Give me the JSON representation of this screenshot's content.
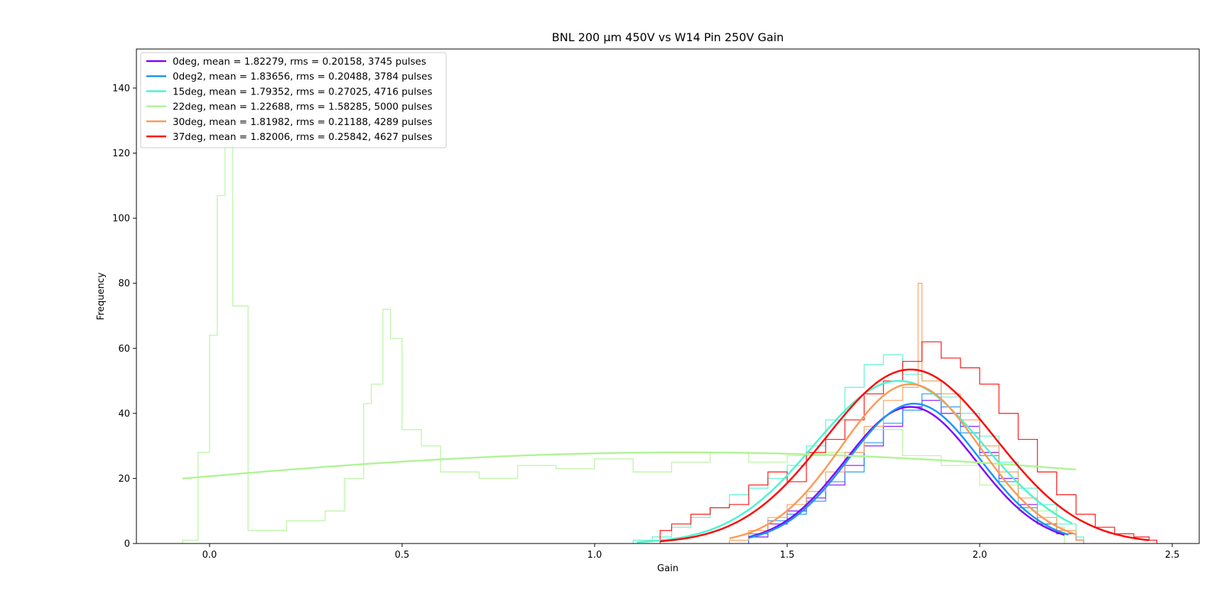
{
  "chart_data": {
    "type": "line",
    "title": "BNL 200 µm 450V vs W14 Pin 250V Gain",
    "xlabel": "Gain",
    "ylabel": "Frequency",
    "xlim": [
      -0.19,
      2.57
    ],
    "ylim": [
      0,
      152
    ],
    "xticks": [
      0.0,
      0.5,
      1.0,
      1.5,
      2.0,
      2.5
    ],
    "xtick_labels": [
      "0.0",
      "0.5",
      "1.0",
      "1.5",
      "2.0",
      "2.5"
    ],
    "yticks": [
      0,
      20,
      40,
      60,
      80,
      100,
      120,
      140
    ],
    "ytick_labels": [
      "0",
      "20",
      "40",
      "60",
      "80",
      "100",
      "120",
      "140"
    ],
    "grid": false,
    "legend_position": "top-left",
    "series": [
      {
        "name": "0deg, mean = 1.82279, rms = 0.20158, 3745 pulses",
        "color": "#8000ff",
        "fit": {
          "amplitude": 42,
          "mean": 1.82,
          "sigma": 0.17,
          "xmin": 1.4,
          "xmax": 2.22
        },
        "hist_x": [
          1.4,
          1.45,
          1.5,
          1.55,
          1.6,
          1.65,
          1.7,
          1.75,
          1.8,
          1.85,
          1.9,
          1.95,
          2.0,
          2.05,
          2.1,
          2.15,
          2.2,
          2.25
        ],
        "hist_y": [
          2,
          6,
          10,
          14,
          18,
          24,
          30,
          36,
          42,
          44,
          40,
          36,
          28,
          20,
          12,
          6,
          3,
          1
        ]
      },
      {
        "name": "0deg2, mean = 1.83656, rms = 0.20488, 3784 pulses",
        "color": "#1996f3",
        "fit": {
          "amplitude": 43,
          "mean": 1.83,
          "sigma": 0.17,
          "xmin": 1.4,
          "xmax": 2.23
        },
        "hist_x": [
          1.4,
          1.45,
          1.5,
          1.55,
          1.6,
          1.65,
          1.7,
          1.75,
          1.8,
          1.85,
          1.9,
          1.95,
          2.0,
          2.05,
          2.1,
          2.15,
          2.2,
          2.25
        ],
        "hist_y": [
          3,
          7,
          9,
          13,
          19,
          22,
          31,
          37,
          41,
          46,
          42,
          34,
          27,
          19,
          11,
          6,
          3,
          1
        ]
      },
      {
        "name": "15deg, mean = 1.79352, rms = 0.27025, 4716 pulses",
        "color": "#4df3ce",
        "fit": {
          "amplitude": 50,
          "mean": 1.79,
          "sigma": 0.22,
          "xmin": 1.11,
          "xmax": 2.24
        },
        "hist_x": [
          1.1,
          1.15,
          1.2,
          1.25,
          1.3,
          1.35,
          1.4,
          1.45,
          1.5,
          1.55,
          1.6,
          1.65,
          1.7,
          1.75,
          1.8,
          1.85,
          1.9,
          1.95,
          2.0,
          2.05,
          2.1,
          2.15,
          2.2,
          2.25
        ],
        "hist_y": [
          1,
          2,
          5,
          8,
          11,
          15,
          17,
          20,
          24,
          30,
          38,
          48,
          55,
          58,
          52,
          50,
          45,
          40,
          33,
          25,
          17,
          12,
          6,
          2
        ]
      },
      {
        "name": "22deg, mean = 1.22688, rms = 1.58285, 5000 pulses",
        "color": "#b2f396",
        "fit": {
          "amplitude": 28,
          "mean": 1.23,
          "sigma": 1.58,
          "xmin": -0.07,
          "xmax": 2.25
        },
        "hist_x": [
          -0.07,
          -0.03,
          0.0,
          0.02,
          0.04,
          0.06,
          0.1,
          0.2,
          0.3,
          0.35,
          0.4,
          0.42,
          0.45,
          0.47,
          0.5,
          0.55,
          0.6,
          0.7,
          0.8,
          0.9,
          1.0,
          1.1,
          1.2,
          1.3,
          1.4,
          1.5,
          1.6,
          1.7,
          1.8,
          1.9,
          2.0,
          2.1,
          2.2
        ],
        "hist_y": [
          1,
          28,
          64,
          107,
          122,
          73,
          4,
          7,
          10,
          20,
          43,
          49,
          72,
          63,
          35,
          30,
          22,
          20,
          24,
          23,
          26,
          22,
          25,
          28,
          25,
          27,
          28,
          35,
          27,
          24,
          18,
          10,
          5
        ]
      },
      {
        "name": "30deg, mean = 1.81982, rms = 0.21188, 4289 pulses",
        "color": "#ff9955",
        "fit": {
          "amplitude": 49,
          "mean": 1.82,
          "sigma": 0.18,
          "xmin": 1.35,
          "xmax": 2.25
        },
        "hist_x": [
          1.35,
          1.4,
          1.45,
          1.5,
          1.55,
          1.6,
          1.65,
          1.7,
          1.75,
          1.8,
          1.84,
          1.85,
          1.9,
          1.95,
          2.0,
          2.05,
          2.1,
          2.15,
          2.2,
          2.25
        ],
        "hist_y": [
          1,
          4,
          8,
          12,
          16,
          22,
          28,
          36,
          44,
          48,
          80,
          50,
          46,
          38,
          30,
          22,
          14,
          8,
          4,
          1
        ]
      },
      {
        "name": "37deg, mean = 1.82006, rms = 0.25842, 4627 pulses",
        "color": "#ff0000",
        "fit": {
          "amplitude": 53.5,
          "mean": 1.82,
          "sigma": 0.22,
          "xmin": 1.17,
          "xmax": 2.44
        },
        "hist_x": [
          1.17,
          1.2,
          1.25,
          1.3,
          1.35,
          1.4,
          1.45,
          1.5,
          1.55,
          1.6,
          1.65,
          1.7,
          1.75,
          1.8,
          1.85,
          1.9,
          1.95,
          2.0,
          2.05,
          2.1,
          2.15,
          2.2,
          2.25,
          2.3,
          2.35,
          2.4,
          2.44
        ],
        "hist_y": [
          4,
          6,
          9,
          11,
          12,
          18,
          22,
          19,
          28,
          32,
          38,
          46,
          50,
          56,
          62,
          57,
          54,
          49,
          40,
          32,
          22,
          15,
          9,
          5,
          3,
          2,
          1
        ]
      }
    ]
  }
}
